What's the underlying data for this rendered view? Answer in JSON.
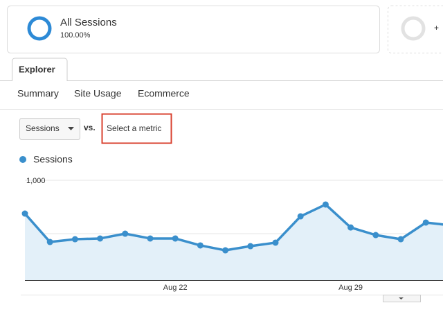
{
  "segment": {
    "name": "All Sessions",
    "share": "100.00%",
    "add": "+"
  },
  "tab": "Explorer",
  "subtabs": [
    "Summary",
    "Site Usage",
    "Ecommerce"
  ],
  "metric_selector": {
    "metric": "Sessions",
    "vs": "vs.",
    "second": "Select a metric"
  },
  "chart_data": {
    "type": "line",
    "categories": [
      null,
      null,
      null,
      null,
      null,
      null,
      "Aug 22",
      null,
      null,
      null,
      null,
      null,
      null,
      "Aug 29",
      null,
      null,
      null,
      null
    ],
    "series": [
      {
        "name": "Sessions",
        "color": "#3a8fcc",
        "values": [
          688,
          422,
          448,
          455,
          500,
          455,
          455,
          390,
          344,
          383,
          416,
          662,
          773,
          558,
          487,
          448,
          604,
          578
        ]
      }
    ],
    "ylim": [
      65,
      1065
    ],
    "yticks": [
      500,
      {
        "value": 1000,
        "label": "1,000"
      }
    ],
    "grid": true
  }
}
